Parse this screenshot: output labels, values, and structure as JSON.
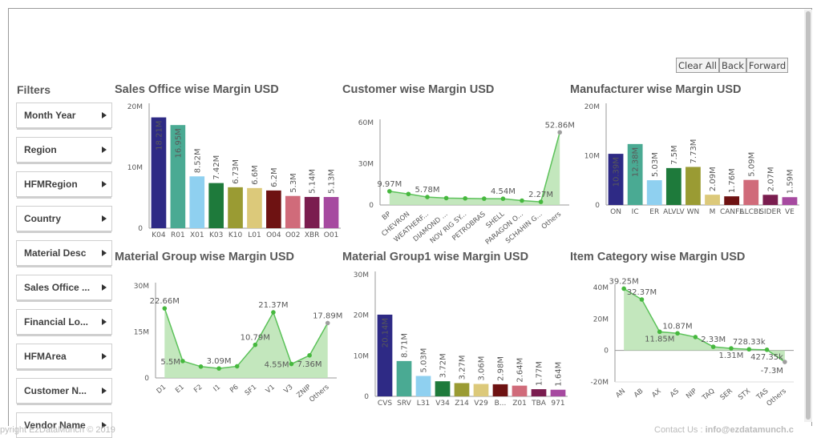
{
  "buttons": {
    "clear_all": "Clear All",
    "back": "Back",
    "forward": "Forward"
  },
  "filters": {
    "title": "Filters",
    "items": [
      "Month Year",
      "Region",
      "HFMRegion",
      "Country",
      "Material Desc",
      "Sales Office ...",
      "Financial Lo...",
      "HFMArea",
      "Customer N...",
      "Vendor Name"
    ]
  },
  "footer": {
    "left": "pyright EzDataMunch © 2019",
    "right_prefix": "Contact Us : ",
    "right_email": "info@ezdatamunch.c"
  },
  "chart_data": [
    {
      "type": "bar",
      "title": "Sales Office wise Margin USD",
      "categories": [
        "K04",
        "R01",
        "X01",
        "K03",
        "K10",
        "L01",
        "O04",
        "O02",
        "XBR",
        "O01"
      ],
      "values": [
        18.21,
        16.95,
        8.52,
        7.42,
        6.73,
        6.6,
        6.2,
        5.3,
        5.14,
        5.13
      ],
      "labels": [
        "18.21M",
        "16.95M",
        "8.52M",
        "7.42M",
        "6.73M",
        "6.6M",
        "6.2M",
        "5.3M",
        "5.14M",
        "5.13M"
      ],
      "colors": [
        "#2e2a85",
        "#4aaa93",
        "#8fd0f0",
        "#1e7a3b",
        "#9a9b33",
        "#dcc97a",
        "#6e1212",
        "#d06b7a",
        "#7a1d4f",
        "#a64aa0"
      ],
      "ylim": [
        0,
        20
      ],
      "yticks": [
        "0",
        "10M",
        "20M"
      ]
    },
    {
      "type": "area",
      "title": "Customer wise Margin USD",
      "categories": [
        "BP",
        "CHEVRON",
        "WEATHERF...",
        "DIAMOND ...",
        "NOV RIG SY...",
        "PETROBRAS",
        "SHELL",
        "PARAGON O...",
        "SCHAHIN G...",
        "Others"
      ],
      "values": [
        9.97,
        8.0,
        5.78,
        5.0,
        4.8,
        4.6,
        4.54,
        3.2,
        2.27,
        52.86
      ],
      "point_labels": {
        "0": "9.97M",
        "2": "5.78M",
        "6": "4.54M",
        "8": "2.27M",
        "9": "52.86M"
      },
      "ylim": [
        0,
        60
      ],
      "yticks": [
        "0",
        "30M",
        "60M"
      ]
    },
    {
      "type": "bar",
      "title": "Manufacturer wise Margin USD",
      "categories": [
        "ON",
        "IC",
        "ER",
        "ALVLV",
        "WN",
        "M",
        "CANFL",
        "ALCBL",
        "SIDER",
        "VE"
      ],
      "values": [
        10.39,
        12.38,
        5.03,
        7.5,
        7.73,
        2.09,
        1.76,
        5.09,
        2.07,
        1.59
      ],
      "labels": [
        "10.39M",
        "12.38M",
        "5.03M",
        "7.5M",
        "7.73M",
        "2.09M",
        "1.76M",
        "5.09M",
        "2.07M",
        "1.59M"
      ],
      "colors": [
        "#2e2a85",
        "#4aaa93",
        "#8fd0f0",
        "#1e7a3b",
        "#9a9b33",
        "#dcc97a",
        "#6e1212",
        "#d06b7a",
        "#7a1d4f",
        "#a64aa0"
      ],
      "ylim": [
        0,
        20
      ],
      "yticks": [
        "0",
        "10M",
        "20M"
      ]
    },
    {
      "type": "area",
      "title": "Material Group wise Margin USD",
      "categories": [
        "D1",
        "E1",
        "F2",
        "I1",
        "P6",
        "SF1",
        "V1",
        "V3",
        "ZNIP",
        "Others"
      ],
      "values": [
        22.66,
        5.5,
        3.7,
        3.09,
        3.8,
        10.79,
        21.37,
        4.55,
        7.36,
        17.89
      ],
      "point_labels": {
        "0": "22.66M",
        "1": "5.5M",
        "3": "3.09M",
        "5": "10.79M",
        "6": "21.37M",
        "7": "4.55M",
        "8": "7.36M",
        "9": "17.89M"
      },
      "ylim": [
        0,
        30
      ],
      "yticks": [
        "0",
        "15M",
        "30M"
      ]
    },
    {
      "type": "bar",
      "title": "Material Group1 wise Margin USD",
      "categories": [
        "CVS",
        "SRV",
        "L31",
        "V34",
        "Z14",
        "V29",
        "B...",
        "Z01",
        "TBA",
        "971"
      ],
      "values": [
        20.14,
        8.71,
        5.03,
        3.72,
        3.27,
        3.06,
        2.98,
        2.64,
        1.77,
        1.64
      ],
      "labels": [
        "20.14M",
        "8.71M",
        "5.03M",
        "3.72M",
        "3.27M",
        "3.06M",
        "2.98M",
        "2.64M",
        "1.77M",
        "1.64M"
      ],
      "colors": [
        "#2e2a85",
        "#4aaa93",
        "#8fd0f0",
        "#1e7a3b",
        "#9a9b33",
        "#dcc97a",
        "#6e1212",
        "#d06b7a",
        "#7a1d4f",
        "#a64aa0"
      ],
      "ylim": [
        0,
        30
      ],
      "yticks": [
        "0",
        "10M",
        "20M",
        "30M"
      ]
    },
    {
      "type": "area",
      "title": "Item Category wise Margin USD",
      "categories": [
        "AN",
        "AB",
        "AX",
        "AS",
        "NIP",
        "TAQ",
        "SER",
        "STX",
        "TAS",
        "Others"
      ],
      "values": [
        39.25,
        32.37,
        11.85,
        10.87,
        8.5,
        2.33,
        1.31,
        0.728,
        0.427,
        -7.3
      ],
      "point_labels": {
        "0": "39.25M",
        "1": "32.37M",
        "2": "11.85M",
        "3": "10.87M",
        "5": "2.33M",
        "6": "1.31M",
        "7": "728.33k",
        "8": "427.35k",
        "9": "-7.3M"
      },
      "ylim": [
        -20,
        40
      ],
      "yticks": [
        "-20M",
        "0",
        "20M",
        "40M"
      ]
    }
  ]
}
